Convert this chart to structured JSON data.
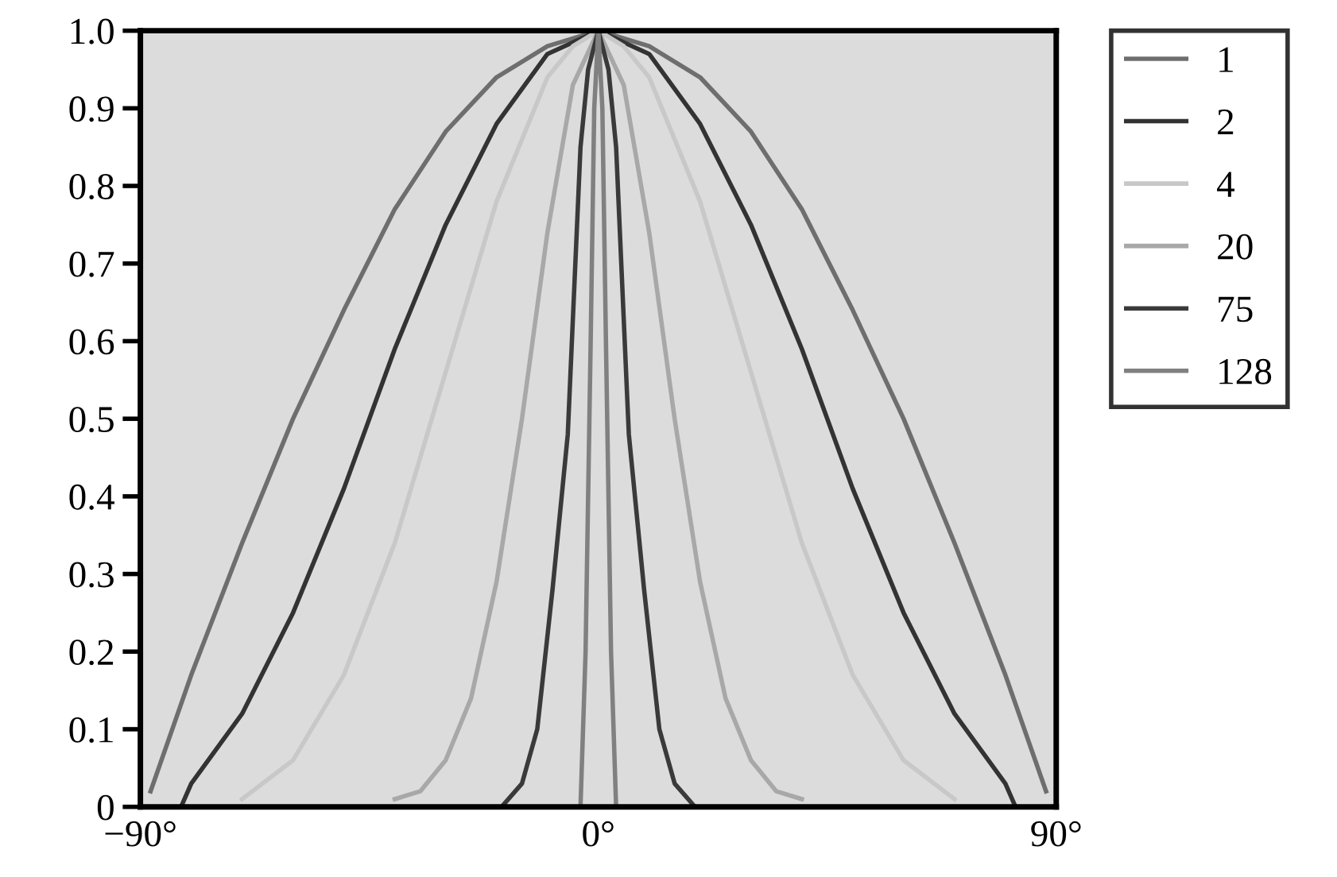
{
  "chart_data": {
    "type": "line",
    "xlim": [
      -90,
      90
    ],
    "ylim": [
      0,
      1.0
    ],
    "xticks": [
      {
        "value": -90,
        "label": "−90°"
      },
      {
        "value": 0,
        "label": "0°"
      },
      {
        "value": 90,
        "label": "90°"
      }
    ],
    "yticks": [
      0,
      0.1,
      0.2,
      0.3,
      0.4,
      0.5,
      0.6,
      0.7,
      0.8,
      0.9,
      {
        "value": 1.0,
        "label": "1.0"
      }
    ],
    "grid": false,
    "legend": "top right",
    "line_style": "solid",
    "marker": "none",
    "series": [
      {
        "name": "1",
        "color": "#6e6e6e",
        "x": [
          -88,
          -80,
          -70,
          -60,
          -50,
          -40,
          -30,
          -20,
          -10,
          0,
          10,
          20,
          30,
          40,
          50,
          60,
          70,
          80,
          88
        ],
        "values": [
          0.02,
          0.17,
          0.34,
          0.5,
          0.64,
          0.77,
          0.87,
          0.94,
          0.98,
          1.0,
          0.98,
          0.94,
          0.87,
          0.77,
          0.64,
          0.5,
          0.34,
          0.17,
          0.02
        ]
      },
      {
        "name": "2",
        "color": "#333333",
        "x": [
          -82,
          -80,
          -70,
          -60,
          -50,
          -40,
          -30,
          -20,
          -10,
          0,
          10,
          20,
          30,
          40,
          50,
          60,
          70,
          80,
          82
        ],
        "values": [
          0,
          0.03,
          0.12,
          0.25,
          0.41,
          0.59,
          0.75,
          0.88,
          0.97,
          1.0,
          0.97,
          0.88,
          0.75,
          0.59,
          0.41,
          0.25,
          0.12,
          0.03,
          0
        ]
      },
      {
        "name": "4",
        "color": "#c8c8c8",
        "x": [
          -70,
          -60,
          -50,
          -40,
          -30,
          -20,
          -10,
          -5,
          0,
          5,
          10,
          20,
          30,
          40,
          50,
          60,
          70
        ],
        "values": [
          0.01,
          0.06,
          0.17,
          0.34,
          0.56,
          0.78,
          0.94,
          0.98,
          1.0,
          0.98,
          0.94,
          0.78,
          0.56,
          0.34,
          0.17,
          0.06,
          0.01
        ]
      },
      {
        "name": "20",
        "color": "#a8a8a8",
        "x": [
          -40,
          -35,
          -30,
          -25,
          -20,
          -15,
          -10,
          -5,
          0,
          5,
          10,
          15,
          20,
          25,
          30,
          35,
          40
        ],
        "values": [
          0.01,
          0.02,
          0.06,
          0.14,
          0.29,
          0.5,
          0.74,
          0.93,
          1.0,
          0.93,
          0.74,
          0.5,
          0.29,
          0.14,
          0.06,
          0.02,
          0.01
        ]
      },
      {
        "name": "75",
        "color": "#3a3a3a",
        "x": [
          -19,
          -15,
          -12,
          -9,
          -6,
          -3.5,
          -2,
          0,
          2,
          3.5,
          6,
          9,
          12,
          15,
          19
        ],
        "values": [
          0,
          0.03,
          0.1,
          0.28,
          0.48,
          0.85,
          0.95,
          1.0,
          0.95,
          0.85,
          0.48,
          0.28,
          0.1,
          0.03,
          0
        ]
      },
      {
        "name": "128",
        "color": "#808080",
        "x": [
          -3.5,
          -2.5,
          -1.5,
          -0.8,
          0,
          0.8,
          1.5,
          2.5,
          3.5
        ],
        "values": [
          0,
          0.2,
          0.6,
          0.9,
          1.0,
          0.9,
          0.6,
          0.2,
          0
        ]
      }
    ]
  }
}
